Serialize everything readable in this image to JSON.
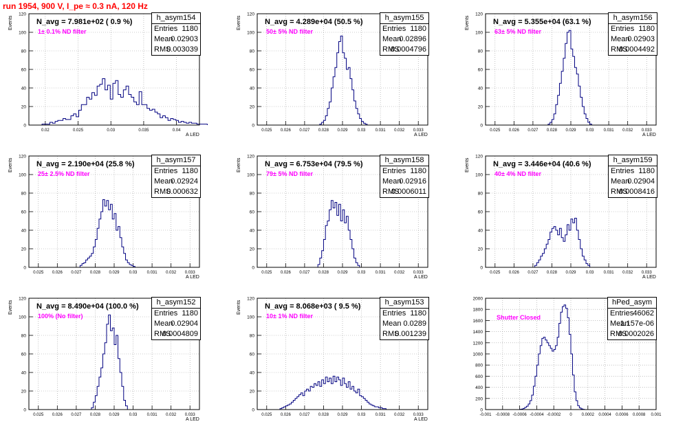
{
  "title": "run 1954,   900 V, I_pe ≈ 0.3 nA, 120 Hz",
  "chart_data": [
    {
      "type": "histogram",
      "name": "h_asym154",
      "navg": "N_avg = 7.981e+02 ( 0.9 %)",
      "label": "1± 0.1% ND filter",
      "entries": "1180",
      "mean": "0.02903",
      "rms": "0.003039",
      "xmin": 0.0175,
      "xmax": 0.0435,
      "ymax": 120,
      "xticks": [
        0.02,
        0.025,
        0.03,
        0.035,
        0.04
      ],
      "xticklabels": [
        "0.02",
        "0.025",
        "0.03",
        "0.035",
        "0.04"
      ],
      "ylabel": "Events",
      "xlabel": "A LED",
      "bin_lo": 0.0195,
      "bin_w": 0.0004,
      "counts": [
        1,
        1,
        1,
        3,
        2,
        4,
        5,
        5,
        7,
        6,
        6,
        10,
        12,
        9,
        16,
        22,
        22,
        30,
        28,
        35,
        32,
        42,
        44,
        50,
        38,
        43,
        28,
        45,
        48,
        33,
        30,
        38,
        42,
        33,
        30,
        25,
        22,
        36,
        22,
        22,
        18,
        16,
        17,
        14,
        12,
        8,
        10,
        8,
        5,
        7,
        6,
        5,
        3,
        4,
        3,
        2,
        3,
        2,
        2,
        1,
        1,
        1,
        1
      ]
    },
    {
      "type": "histogram",
      "name": "h_asym155",
      "navg": "N_avg = 4.289e+04 (50.5 %)",
      "label": "50± 5% ND filter",
      "entries": "1180",
      "mean": "0.02896",
      "rms": "0.0004796",
      "xmin": 0.0245,
      "xmax": 0.0335,
      "ymax": 120,
      "xticks": [
        0.025,
        0.026,
        0.027,
        0.028,
        0.029,
        0.03,
        0.031,
        0.032,
        0.033
      ],
      "xticklabels": [
        "0.025",
        "0.026",
        "0.027",
        "0.028",
        "0.029",
        "0.03",
        "0.031",
        "0.032",
        "0.033"
      ],
      "ylabel": "Events",
      "xlabel": "A LED",
      "bin_lo": 0.0278,
      "bin_w": 0.0001,
      "counts": [
        1,
        3,
        5,
        10,
        18,
        25,
        40,
        52,
        62,
        78,
        90,
        96,
        78,
        72,
        60,
        62,
        50,
        38,
        26,
        18,
        12,
        7,
        4,
        2,
        1
      ]
    },
    {
      "type": "histogram",
      "name": "h_asym156",
      "navg": "N_avg = 5.355e+04 (63.1 %)",
      "label": "63± 5% ND filter",
      "entries": "1180",
      "mean": "0.02903",
      "rms": "0.0004492",
      "xmin": 0.0245,
      "xmax": 0.0335,
      "ymax": 120,
      "xticks": [
        0.025,
        0.026,
        0.027,
        0.028,
        0.029,
        0.03,
        0.031,
        0.032,
        0.033
      ],
      "xticklabels": [
        "0.025",
        "0.026",
        "0.027",
        "0.028",
        "0.029",
        "0.03",
        "0.031",
        "0.032",
        "0.033"
      ],
      "ylabel": "Events",
      "xlabel": "A LED",
      "bin_lo": 0.0278,
      "bin_w": 0.0001,
      "counts": [
        1,
        3,
        6,
        12,
        22,
        32,
        45,
        58,
        72,
        88,
        100,
        102,
        82,
        74,
        62,
        55,
        42,
        30,
        20,
        12,
        7,
        3,
        1
      ]
    },
    {
      "type": "histogram",
      "name": "h_asym157",
      "navg": "N_avg = 2.190e+04 (25.8 %)",
      "label": "25± 2.5% ND filter",
      "entries": "1180",
      "mean": "0.02924",
      "rms": "0.000632",
      "xmin": 0.0245,
      "xmax": 0.0335,
      "ymax": 120,
      "xticks": [
        0.025,
        0.026,
        0.027,
        0.028,
        0.029,
        0.03,
        0.031,
        0.032,
        0.033
      ],
      "xticklabels": [
        "0.025",
        "0.026",
        "0.027",
        "0.028",
        "0.029",
        "0.03",
        "0.031",
        "0.032",
        "0.033"
      ],
      "ylabel": "Events",
      "xlabel": "A LED",
      "bin_lo": 0.0272,
      "bin_w": 0.0001,
      "counts": [
        2,
        4,
        5,
        8,
        10,
        12,
        15,
        22,
        30,
        42,
        52,
        60,
        73,
        66,
        72,
        62,
        68,
        52,
        58,
        40,
        44,
        32,
        22,
        15,
        8,
        5,
        3,
        2,
        1
      ]
    },
    {
      "type": "histogram",
      "name": "h_asym158",
      "navg": "N_avg = 6.753e+04 (79.5 %)",
      "label": "79± 5% ND filter",
      "entries": "1180",
      "mean": "0.02916",
      "rms": "0.0006011",
      "xmin": 0.0245,
      "xmax": 0.0335,
      "ymax": 120,
      "xticks": [
        0.025,
        0.026,
        0.027,
        0.028,
        0.029,
        0.03,
        0.031,
        0.032,
        0.033
      ],
      "xticklabels": [
        "0.025",
        "0.026",
        "0.027",
        "0.028",
        "0.029",
        "0.03",
        "0.031",
        "0.032",
        "0.033"
      ],
      "ylabel": "Events",
      "xlabel": "A LED",
      "bin_lo": 0.0277,
      "bin_w": 0.0001,
      "counts": [
        3,
        10,
        18,
        30,
        45,
        50,
        62,
        72,
        64,
        70,
        56,
        68,
        50,
        62,
        48,
        55,
        40,
        30,
        20,
        10,
        5,
        2
      ]
    },
    {
      "type": "histogram",
      "name": "h_asym159",
      "navg": "N_avg = 3.446e+04 (40.6 %)",
      "label": "40± 4% ND filter",
      "entries": "1180",
      "mean": "0.02904",
      "rms": "0.0008416",
      "xmin": 0.0245,
      "xmax": 0.0335,
      "ymax": 120,
      "xticks": [
        0.025,
        0.026,
        0.027,
        0.028,
        0.029,
        0.03,
        0.031,
        0.032,
        0.033
      ],
      "xticklabels": [
        "0.025",
        "0.026",
        "0.027",
        "0.028",
        "0.029",
        "0.03",
        "0.031",
        "0.032",
        "0.033"
      ],
      "ylabel": "Events",
      "xlabel": "A LED",
      "bin_lo": 0.0271,
      "bin_w": 0.0001,
      "counts": [
        2,
        5,
        8,
        12,
        15,
        20,
        25,
        30,
        38,
        42,
        44,
        40,
        35,
        42,
        32,
        28,
        35,
        46,
        40,
        52,
        48,
        53,
        40,
        30,
        20,
        12,
        8,
        4,
        2
      ]
    },
    {
      "type": "histogram",
      "name": "h_asym152",
      "navg": "N_avg = 8.490e+04 (100.0 %)",
      "label": "100% (No filter)",
      "entries": "1180",
      "mean": "0.02904",
      "rms": "0.0004809",
      "xmin": 0.0245,
      "xmax": 0.0335,
      "ymax": 120,
      "xticks": [
        0.025,
        0.026,
        0.027,
        0.028,
        0.029,
        0.03,
        0.031,
        0.032,
        0.033
      ],
      "xticklabels": [
        "0.025",
        "0.026",
        "0.027",
        "0.028",
        "0.029",
        "0.03",
        "0.031",
        "0.032",
        "0.033"
      ],
      "ylabel": "Events",
      "xlabel": "A LED",
      "bin_lo": 0.0278,
      "bin_w": 0.0001,
      "counts": [
        2,
        8,
        15,
        25,
        35,
        45,
        60,
        72,
        92,
        102,
        85,
        88,
        70,
        80,
        55,
        40,
        25,
        10,
        4
      ]
    },
    {
      "type": "histogram",
      "name": "h_asym153",
      "navg": "N_avg = 8.068e+03 ( 9.5 %)",
      "label": "10± 1% ND filter",
      "entries": "1180",
      "mean": "0.0289",
      "rms": "0.001239",
      "xmin": 0.0245,
      "xmax": 0.0335,
      "ymax": 120,
      "xticks": [
        0.025,
        0.026,
        0.027,
        0.028,
        0.029,
        0.03,
        0.031,
        0.032,
        0.033
      ],
      "xticklabels": [
        "0.025",
        "0.026",
        "0.027",
        "0.028",
        "0.029",
        "0.03",
        "0.031",
        "0.032",
        "0.033"
      ],
      "ylabel": "Events",
      "xlabel": "A LED",
      "bin_lo": 0.0257,
      "bin_w": 0.0001,
      "counts": [
        1,
        2,
        3,
        4,
        5,
        6,
        8,
        10,
        12,
        14,
        16,
        18,
        15,
        20,
        22,
        20,
        25,
        24,
        28,
        26,
        30,
        25,
        32,
        28,
        35,
        30,
        34,
        28,
        36,
        30,
        35,
        32,
        26,
        34,
        28,
        24,
        30,
        22,
        25,
        20,
        18,
        22,
        15,
        14,
        12,
        10,
        8,
        6,
        5,
        4,
        3,
        3,
        2,
        2,
        1,
        1
      ]
    },
    {
      "type": "histogram",
      "name": "hPed_asym",
      "navg": "",
      "label": "Shutter Closed",
      "entries": "46062",
      "mean": "-1.157e-06",
      "rms": "0.0002026",
      "xmin": -0.001,
      "xmax": 0.001,
      "ymax": 2000,
      "xticks": [
        -0.001,
        -0.0008,
        -0.0006,
        -0.0004,
        -0.0002,
        0,
        0.0002,
        0.0004,
        0.0006,
        0.0008,
        0.001
      ],
      "xticklabels": [
        "-0.001",
        "-0.0008",
        "-0.0006",
        "-0.0004",
        "-0.0002",
        "0",
        "0.0002",
        "0.0004",
        "0.0006",
        "0.0008",
        "0.001"
      ],
      "ylabel": "",
      "xlabel": "",
      "bin_lo": -0.0006,
      "bin_w": 2e-05,
      "counts": [
        5,
        10,
        20,
        40,
        60,
        100,
        160,
        260,
        420,
        600,
        800,
        1000,
        1150,
        1280,
        1300,
        1250,
        1200,
        1150,
        1100,
        1050,
        1080,
        1150,
        1300,
        1550,
        1750,
        1850,
        1880,
        1820,
        1650,
        1350,
        1000,
        620,
        320,
        160,
        70,
        30,
        12,
        5
      ]
    }
  ]
}
